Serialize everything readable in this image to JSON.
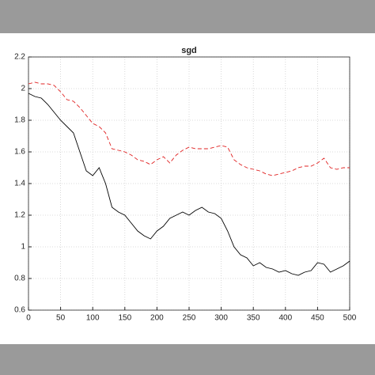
{
  "chart_data": {
    "type": "line",
    "title": "sgd",
    "x": [
      0,
      10,
      20,
      30,
      40,
      50,
      60,
      70,
      80,
      90,
      100,
      110,
      120,
      130,
      140,
      150,
      160,
      170,
      180,
      190,
      200,
      210,
      220,
      230,
      240,
      250,
      260,
      270,
      280,
      290,
      300,
      310,
      320,
      330,
      340,
      350,
      360,
      370,
      380,
      390,
      400,
      410,
      420,
      430,
      440,
      450,
      460,
      470,
      480,
      490,
      500
    ],
    "series": [
      {
        "color": "#000000",
        "dash": "solid",
        "values": [
          1.97,
          1.95,
          1.94,
          1.9,
          1.85,
          1.8,
          1.76,
          1.72,
          1.6,
          1.48,
          1.45,
          1.5,
          1.4,
          1.25,
          1.22,
          1.2,
          1.15,
          1.1,
          1.07,
          1.05,
          1.1,
          1.13,
          1.18,
          1.2,
          1.22,
          1.2,
          1.23,
          1.25,
          1.22,
          1.21,
          1.18,
          1.1,
          1.0,
          0.95,
          0.93,
          0.88,
          0.9,
          0.87,
          0.86,
          0.84,
          0.85,
          0.83,
          0.82,
          0.84,
          0.85,
          0.9,
          0.89,
          0.84,
          0.86,
          0.88,
          0.91
        ]
      },
      {
        "color": "#e02020",
        "dash": "dashed",
        "values": [
          2.03,
          2.04,
          2.03,
          2.03,
          2.02,
          1.98,
          1.93,
          1.92,
          1.88,
          1.83,
          1.78,
          1.76,
          1.72,
          1.62,
          1.61,
          1.6,
          1.58,
          1.55,
          1.54,
          1.52,
          1.55,
          1.57,
          1.53,
          1.58,
          1.61,
          1.63,
          1.62,
          1.62,
          1.62,
          1.63,
          1.64,
          1.63,
          1.55,
          1.52,
          1.5,
          1.49,
          1.48,
          1.46,
          1.45,
          1.46,
          1.47,
          1.48,
          1.5,
          1.51,
          1.51,
          1.53,
          1.56,
          1.5,
          1.49,
          1.5,
          1.5
        ]
      }
    ],
    "xlim": [
      0,
      500
    ],
    "xticks": [
      0,
      50,
      100,
      150,
      200,
      250,
      300,
      350,
      400,
      450,
      500
    ],
    "ylim": [
      0.6,
      2.2
    ],
    "yticks": [
      0.6,
      0.8,
      1,
      1.2,
      1.4,
      1.6,
      1.8,
      2,
      2.2
    ],
    "grid": true
  }
}
